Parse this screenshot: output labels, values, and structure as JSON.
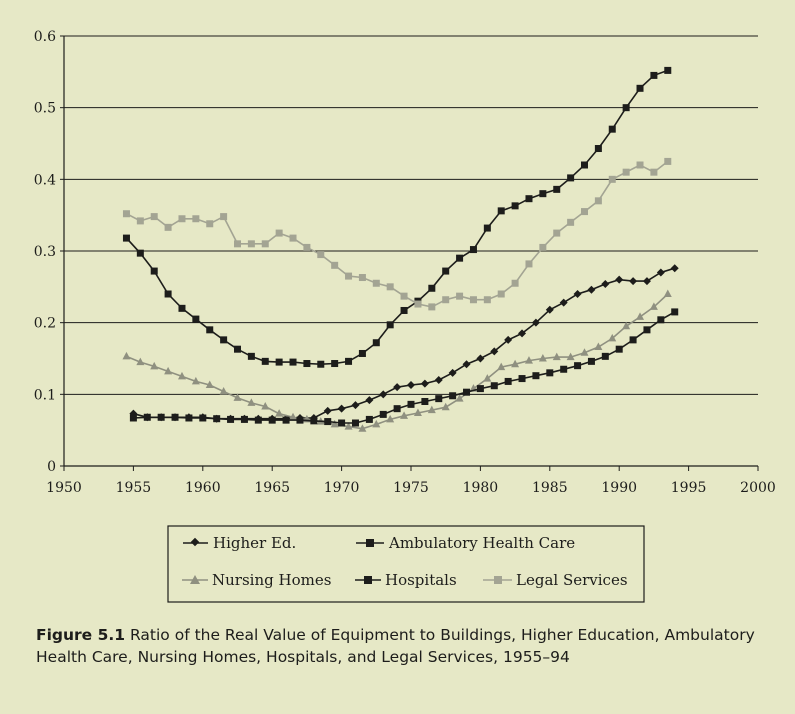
{
  "chart_data": {
    "type": "line",
    "title": "",
    "xlabel": "",
    "ylabel": "",
    "xlim": [
      1950,
      2000
    ],
    "ylim": [
      0,
      0.6
    ],
    "x_ticks": [
      "1950",
      "1955",
      "1960",
      "1965",
      "1970",
      "1975",
      "1980",
      "1985",
      "1990",
      "1995",
      "2000"
    ],
    "y_ticks": [
      "0",
      "0.1",
      "0.2",
      "0.3",
      "0.4",
      "0.5",
      "0.6"
    ],
    "grid": "horizontal",
    "legend_position": "below",
    "legend_rows": [
      [
        "Higher Ed.",
        "Ambulatory Health Care"
      ],
      [
        "Nursing Homes",
        "Hospitals",
        "Legal Services"
      ]
    ],
    "series": [
      {
        "name": "Higher Ed.",
        "marker": "diamond",
        "color": "#1d1d1b",
        "x": [
          1955,
          1956,
          1957,
          1958,
          1959,
          1960,
          1961,
          1962,
          1963,
          1964,
          1965,
          1966,
          1967,
          1968,
          1969,
          1970,
          1971,
          1972,
          1973,
          1974,
          1975,
          1976,
          1977,
          1978,
          1979,
          1980,
          1981,
          1982,
          1983,
          1984,
          1985,
          1986,
          1987,
          1988,
          1989,
          1990,
          1991,
          1992,
          1993,
          1994
        ],
        "y": [
          0.073,
          0.068,
          0.068,
          0.068,
          0.068,
          0.068,
          0.066,
          0.066,
          0.066,
          0.066,
          0.066,
          0.066,
          0.067,
          0.067,
          0.077,
          0.08,
          0.085,
          0.092,
          0.1,
          0.11,
          0.113,
          0.115,
          0.12,
          0.13,
          0.142,
          0.15,
          0.16,
          0.176,
          0.185,
          0.2,
          0.218,
          0.228,
          0.24,
          0.246,
          0.254,
          0.26,
          0.258,
          0.258,
          0.27,
          0.276
        ]
      },
      {
        "name": "Ambulatory Health Care",
        "marker": "square",
        "color": "#1d1d1b",
        "x": [
          1954.5,
          1955.5,
          1956.5,
          1957.5,
          1958.5,
          1959.5,
          1960.5,
          1961.5,
          1962.5,
          1963.5,
          1964.5,
          1965.5,
          1966.5,
          1967.5,
          1968.5,
          1969.5,
          1970.5,
          1971.5,
          1972.5,
          1973.5,
          1974.5,
          1975.5,
          1976.5,
          1977.5,
          1978.5,
          1979.5,
          1980.5,
          1981.5,
          1982.5,
          1983.5,
          1984.5,
          1985.5,
          1986.5,
          1987.5,
          1988.5,
          1989.5,
          1990.5,
          1991.5,
          1992.5,
          1993.5
        ],
        "y": [
          0.318,
          0.297,
          0.272,
          0.24,
          0.22,
          0.205,
          0.19,
          0.176,
          0.163,
          0.153,
          0.146,
          0.145,
          0.145,
          0.143,
          0.142,
          0.143,
          0.146,
          0.157,
          0.172,
          0.197,
          0.217,
          0.23,
          0.248,
          0.272,
          0.29,
          0.302,
          0.332,
          0.356,
          0.363,
          0.373,
          0.38,
          0.386,
          0.402,
          0.42,
          0.443,
          0.47,
          0.5,
          0.527,
          0.545,
          0.552
        ]
      },
      {
        "name": "Nursing Homes",
        "marker": "triangle",
        "color": "#8f9080",
        "x": [
          1954.5,
          1955.5,
          1956.5,
          1957.5,
          1958.5,
          1959.5,
          1960.5,
          1961.5,
          1962.5,
          1963.5,
          1964.5,
          1965.5,
          1966.5,
          1967.5,
          1968.5,
          1969.5,
          1970.5,
          1971.5,
          1972.5,
          1973.5,
          1974.5,
          1975.5,
          1976.5,
          1977.5,
          1978.5,
          1979.5,
          1980.5,
          1981.5,
          1982.5,
          1983.5,
          1984.5,
          1985.5,
          1986.5,
          1987.5,
          1988.5,
          1989.5,
          1990.5,
          1991.5,
          1992.5,
          1993.5
        ],
        "y": [
          0.153,
          0.145,
          0.139,
          0.132,
          0.125,
          0.118,
          0.113,
          0.104,
          0.095,
          0.088,
          0.083,
          0.073,
          0.068,
          0.065,
          0.062,
          0.058,
          0.055,
          0.052,
          0.058,
          0.065,
          0.07,
          0.074,
          0.078,
          0.082,
          0.094,
          0.108,
          0.122,
          0.138,
          0.142,
          0.147,
          0.15,
          0.152,
          0.152,
          0.158,
          0.166,
          0.178,
          0.195,
          0.208,
          0.222,
          0.24
        ]
      },
      {
        "name": "Hospitals",
        "marker": "square",
        "color": "#1d1d1b",
        "x": [
          1955,
          1956,
          1957,
          1958,
          1959,
          1960,
          1961,
          1962,
          1963,
          1964,
          1965,
          1966,
          1967,
          1968,
          1969,
          1970,
          1971,
          1972,
          1973,
          1974,
          1975,
          1976,
          1977,
          1978,
          1979,
          1980,
          1981,
          1982,
          1983,
          1984,
          1985,
          1986,
          1987,
          1988,
          1989,
          1990,
          1991,
          1992,
          1993,
          1994
        ],
        "y": [
          0.067,
          0.068,
          0.068,
          0.068,
          0.067,
          0.067,
          0.066,
          0.065,
          0.065,
          0.064,
          0.064,
          0.064,
          0.064,
          0.063,
          0.062,
          0.06,
          0.06,
          0.065,
          0.072,
          0.08,
          0.086,
          0.09,
          0.094,
          0.098,
          0.103,
          0.108,
          0.112,
          0.118,
          0.122,
          0.126,
          0.13,
          0.135,
          0.14,
          0.146,
          0.153,
          0.163,
          0.176,
          0.19,
          0.204,
          0.215
        ]
      },
      {
        "name": "Legal Services",
        "marker": "square",
        "color": "#a3a493",
        "x": [
          1954.5,
          1955.5,
          1956.5,
          1957.5,
          1958.5,
          1959.5,
          1960.5,
          1961.5,
          1962.5,
          1963.5,
          1964.5,
          1965.5,
          1966.5,
          1967.5,
          1968.5,
          1969.5,
          1970.5,
          1971.5,
          1972.5,
          1973.5,
          1974.5,
          1975.5,
          1976.5,
          1977.5,
          1978.5,
          1979.5,
          1980.5,
          1981.5,
          1982.5,
          1983.5,
          1984.5,
          1985.5,
          1986.5,
          1987.5,
          1988.5,
          1989.5,
          1990.5,
          1991.5,
          1992.5,
          1993.5
        ],
        "y": [
          0.352,
          0.342,
          0.348,
          0.333,
          0.345,
          0.345,
          0.338,
          0.348,
          0.31,
          0.31,
          0.31,
          0.325,
          0.318,
          0.305,
          0.295,
          0.28,
          0.265,
          0.263,
          0.255,
          0.25,
          0.237,
          0.226,
          0.222,
          0.232,
          0.237,
          0.232,
          0.232,
          0.24,
          0.255,
          0.282,
          0.305,
          0.325,
          0.34,
          0.355,
          0.37,
          0.4,
          0.41,
          0.42,
          0.41,
          0.425
        ]
      }
    ]
  },
  "caption": {
    "figure_number": "Figure 5.1",
    "text": "Ratio of the Real Value of Equipment to Buildings, Higher Education, Ambulatory Health Care, Nursing Homes, Hospitals, and Legal Services, 1955–94"
  }
}
